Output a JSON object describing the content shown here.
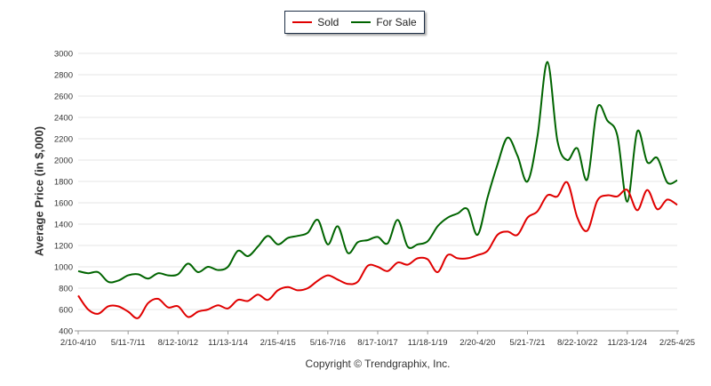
{
  "legend": {
    "sold_label": "Sold",
    "for_sale_label": "For Sale"
  },
  "colors": {
    "sold": "#e00000",
    "for_sale": "#006400",
    "grid": "#e6e6e6",
    "axis_text": "#333333"
  },
  "copyright": "Copyright © Trendgraphix, Inc.",
  "chart_data": {
    "type": "line",
    "ylabel": "Average Price (in $,000)",
    "xlabel": "",
    "ylim": [
      400,
      3000
    ],
    "yticks": [
      400,
      600,
      800,
      1000,
      1200,
      1400,
      1600,
      1800,
      2000,
      2200,
      2400,
      2600,
      2800,
      3000
    ],
    "xticks": [
      {
        "label": "2/10-4/10",
        "index": 0
      },
      {
        "label": "5/11-7/11",
        "index": 5
      },
      {
        "label": "8/12-10/12",
        "index": 10
      },
      {
        "label": "11/13-1/14",
        "index": 15
      },
      {
        "label": "2/15-4/15",
        "index": 20
      },
      {
        "label": "5/16-7/16",
        "index": 25
      },
      {
        "label": "8/17-10/17",
        "index": 30
      },
      {
        "label": "11/18-1/19",
        "index": 35
      },
      {
        "label": "2/20-4/20",
        "index": 40
      },
      {
        "label": "5/21-7/21",
        "index": 45
      },
      {
        "label": "8/22-10/22",
        "index": 50
      },
      {
        "label": "11/23-1/24",
        "index": 55
      },
      {
        "label": "2/25-4/25",
        "index": 60
      }
    ],
    "grid": true,
    "legend_position": "top-center",
    "series": [
      {
        "name": "Sold",
        "values": [
          730,
          600,
          560,
          630,
          630,
          580,
          520,
          660,
          700,
          620,
          630,
          530,
          580,
          600,
          640,
          610,
          690,
          680,
          740,
          690,
          780,
          810,
          780,
          800,
          870,
          920,
          880,
          840,
          860,
          1010,
          1000,
          960,
          1040,
          1020,
          1080,
          1070,
          950,
          1110,
          1080,
          1080,
          1110,
          1150,
          1300,
          1330,
          1300,
          1460,
          1520,
          1670,
          1660,
          1790,
          1460,
          1340,
          1620,
          1670,
          1660,
          1720,
          1530,
          1720,
          1540,
          1630,
          1580
        ]
      },
      {
        "name": "For Sale",
        "values": [
          960,
          940,
          950,
          860,
          870,
          920,
          930,
          890,
          940,
          920,
          930,
          1030,
          950,
          1000,
          970,
          1000,
          1150,
          1100,
          1190,
          1290,
          1210,
          1270,
          1290,
          1320,
          1440,
          1210,
          1380,
          1130,
          1230,
          1250,
          1280,
          1220,
          1440,
          1190,
          1210,
          1240,
          1380,
          1460,
          1500,
          1540,
          1300,
          1650,
          1960,
          2210,
          2040,
          1800,
          2220,
          2920,
          2180,
          2000,
          2110,
          1820,
          2490,
          2370,
          2230,
          1610,
          2270,
          1980,
          2020,
          1790,
          1810
        ]
      }
    ]
  }
}
